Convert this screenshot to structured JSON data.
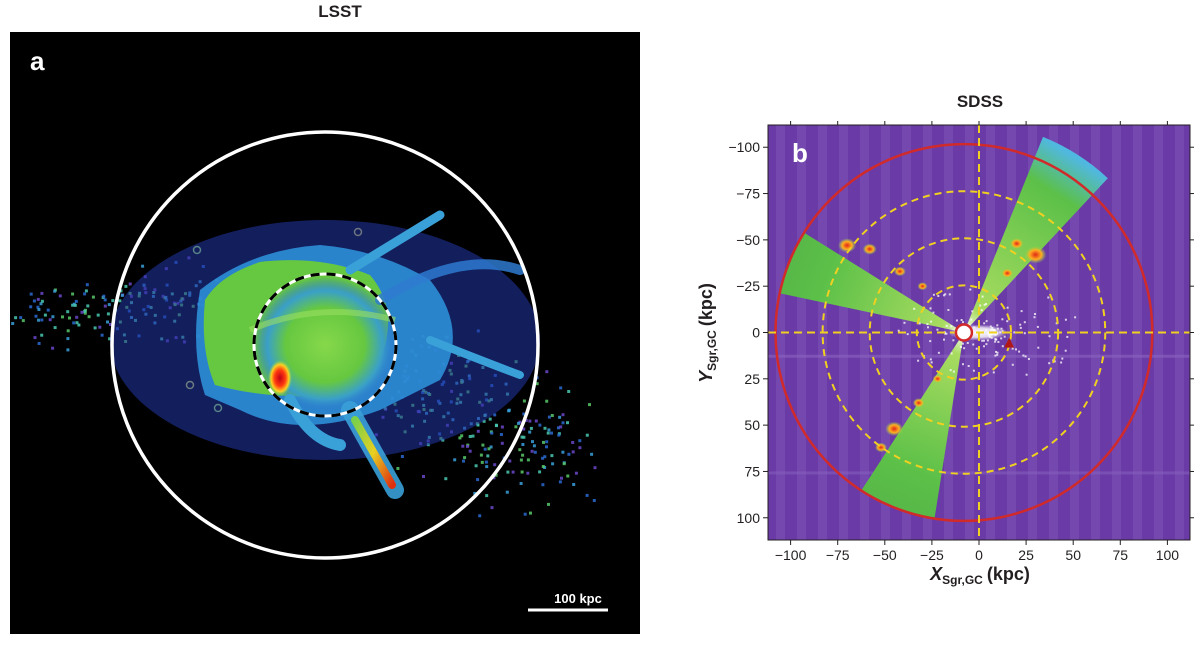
{
  "panel_a": {
    "title": "LSST",
    "label": "a",
    "scalebar_label": "100 kpc"
  },
  "panel_b": {
    "title": "SDSS",
    "label": "b"
  },
  "chart_data": [
    {
      "type": "heatmap",
      "title": "SDSS",
      "panel": "b",
      "xlabel_main": "X",
      "xlabel_sub": "Sgr,GC",
      "xlabel_unit": "(kpc)",
      "ylabel_main": "Y",
      "ylabel_sub": "Sgr,GC",
      "ylabel_unit": "(kpc)",
      "xlim": [
        -112,
        112
      ],
      "ylim": [
        -112,
        112
      ],
      "y_inverted": true,
      "x_ticks": [
        -100,
        -75,
        -50,
        -25,
        0,
        25,
        50,
        75,
        100
      ],
      "y_ticks": [
        -100,
        -75,
        -50,
        -25,
        0,
        25,
        50,
        75,
        100
      ],
      "x_tick_labels": [
        "−100",
        "−75",
        "−50",
        "−25",
        "0",
        "25",
        "50",
        "75",
        "100"
      ],
      "y_tick_labels": [
        "−100",
        "−75",
        "−50",
        "−25",
        "0",
        "25",
        "50",
        "75",
        "100"
      ],
      "dashed_circle_radii": [
        25,
        50,
        75
      ],
      "outer_circle_radius": 100,
      "sun_position": [
        -8,
        0
      ],
      "triangle_marker": [
        16,
        6
      ],
      "background_color": "#6a3aa6",
      "outer_circle_color": "#d12a2a",
      "dashed_color": "#f0d020",
      "wedges": [
        {
          "start_deg": 192,
          "end_deg": 212,
          "r_max": 100
        },
        {
          "start_deg": 292,
          "end_deg": 313,
          "r_max": 112
        },
        {
          "start_deg": 99,
          "end_deg": 123,
          "r_max": 100
        }
      ]
    }
  ]
}
